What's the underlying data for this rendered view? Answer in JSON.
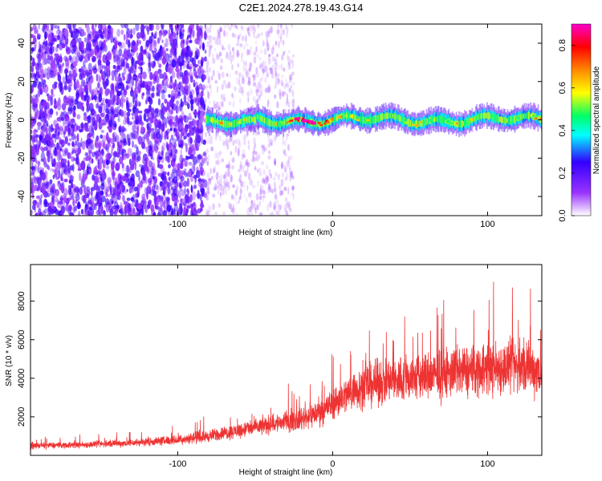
{
  "title": "C2E1.2024.278.19.43.G14",
  "chart_data": [
    {
      "type": "heatmap",
      "xlabel": "Height of straight line (km)",
      "ylabel": "Frequency (Hz)",
      "xlim": [
        -195,
        135
      ],
      "ylim": [
        -50,
        50
      ],
      "x_ticks": [
        -100,
        0,
        100
      ],
      "y_ticks": [
        -40,
        -20,
        0,
        20,
        40
      ],
      "grid": false,
      "colorbar": {
        "label": "Normalized spectral amplitude",
        "range": [
          0.0,
          0.9
        ],
        "ticks": [
          0.0,
          0.2,
          0.4,
          0.6,
          0.8
        ],
        "colors": [
          "#ffffff",
          "#9933ff",
          "#3300ff",
          "#00ffff",
          "#00ff66",
          "#ffff00",
          "#ff8800",
          "#ff0000",
          "#ff00cc"
        ]
      },
      "regions": [
        {
          "x_range": [
            -195,
            -82
          ],
          "description_amplitude": 0.15,
          "spread_hz": [
            -50,
            50
          ]
        },
        {
          "x_range": [
            -82,
            -25
          ],
          "description_amplitude": 0.05,
          "spread_hz": [
            -50,
            50
          ]
        },
        {
          "x_range": [
            -82,
            135
          ],
          "signal_center_hz": 0,
          "signal_width_hz": 10,
          "peak_amplitude": 0.9,
          "peak_x": -15
        }
      ]
    },
    {
      "type": "line",
      "xlabel": "Height of straight line (km)",
      "ylabel": "SNR (10 * v/v)",
      "xlim": [
        -195,
        135
      ],
      "ylim": [
        0,
        9900
      ],
      "x_ticks": [
        -100,
        0,
        100
      ],
      "y_ticks": [
        2000,
        4000,
        6000,
        8000
      ],
      "grid": false,
      "series": [
        {
          "color": "#ee3333",
          "x": [
            -195,
            -160,
            -130,
            -100,
            -80,
            -60,
            -40,
            -20,
            -10,
            0,
            10,
            20,
            40,
            60,
            80,
            100,
            120,
            135
          ],
          "values": [
            500,
            550,
            650,
            800,
            1000,
            1300,
            1600,
            1900,
            2200,
            2700,
            3200,
            3600,
            3900,
            4100,
            4300,
            4500,
            4600,
            4400
          ]
        }
      ]
    }
  ]
}
